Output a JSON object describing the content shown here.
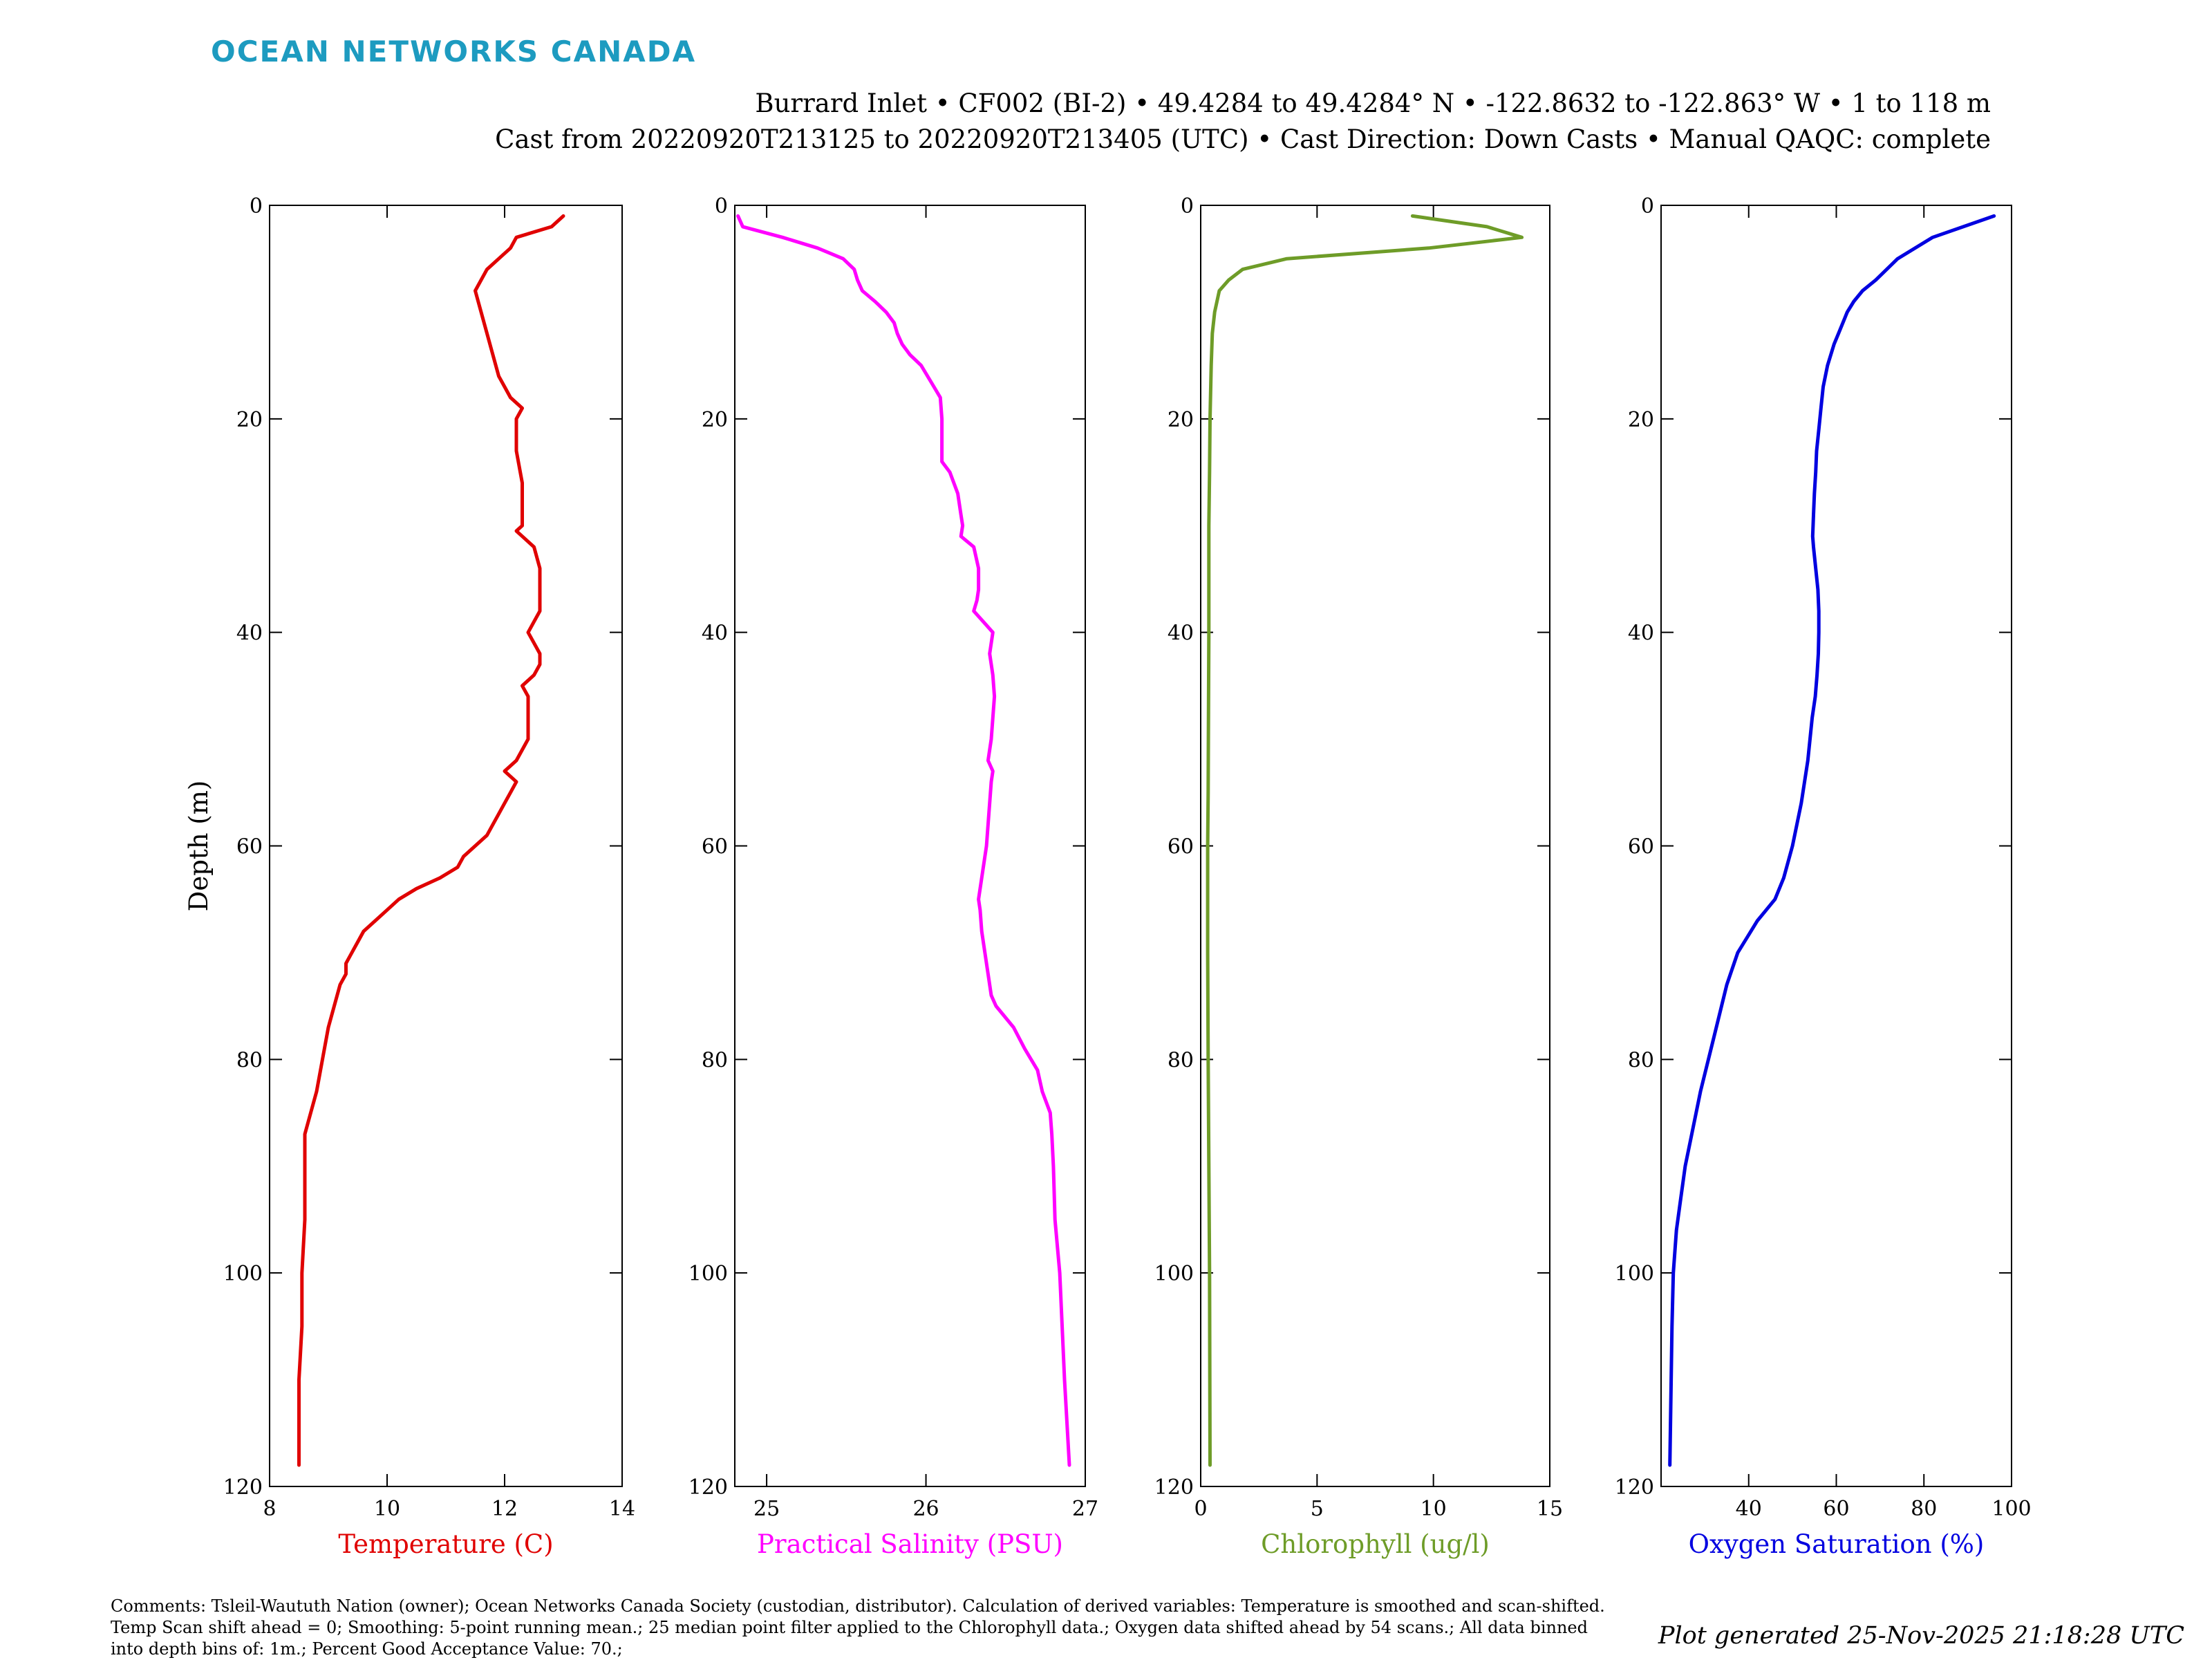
{
  "header": {
    "logo_text": "OCEAN NETWORKS CANADA",
    "line1": "Burrard Inlet • CF002 (BI-2) • 49.4284 to 49.4284° N • -122.8632 to -122.863° W • 1 to 118 m",
    "line2": "Cast from 20220920T213125 to 20220920T213405 (UTC) • Cast Direction: Down Casts • Manual QAQC: complete"
  },
  "footer": {
    "comments": "Comments: Tsleil-Waututh Nation (owner); Ocean Networks Canada Society (custodian, distributor). Calculation of derived variables: Temperature is smoothed and scan-shifted. Temp Scan shift ahead = 0; Smoothing: 5-point running mean.; 25 median point filter applied to the Chlorophyll data.; Oxygen data shifted ahead by 54 scans.; All data binned into depth bins of: 1m.; Percent Good Acceptance Value: 70.;",
    "generated": "Plot generated 25-Nov-2025 21:18:28 UTC"
  },
  "chart_data": [
    {
      "type": "line",
      "title": "",
      "xlabel": "Temperature (C)",
      "ylabel": "Depth (m)",
      "color": "#e00000",
      "xlim": [
        8,
        14
      ],
      "ylim": [
        0,
        120
      ],
      "y_reversed": true,
      "xticks": [
        "8",
        "10",
        "12",
        "14"
      ],
      "yticks": [
        "0",
        "20",
        "40",
        "60",
        "80",
        "100",
        "120"
      ],
      "series": [
        {
          "x": [
            13.0,
            12.8,
            12.2,
            12.1,
            11.9,
            11.7,
            11.5,
            11.6,
            11.7,
            11.8,
            11.9,
            12.0,
            12.1,
            12.3,
            12.2,
            12.2,
            12.3,
            12.3,
            12.3,
            12.3,
            12.2,
            12.3,
            12.5,
            12.6,
            12.6,
            12.6,
            12.6,
            12.5,
            12.4,
            12.5,
            12.6,
            12.6,
            12.5,
            12.3,
            12.4,
            12.4,
            12.4,
            12.3,
            12.2,
            12.0,
            12.2,
            12.1,
            12.0,
            11.9,
            11.8,
            11.7,
            11.5,
            11.3,
            11.2,
            10.9,
            10.5,
            10.2,
            10.0,
            9.8,
            9.6,
            9.5,
            9.4,
            9.3,
            9.3,
            9.2,
            9.1,
            9.0,
            8.9,
            8.8,
            8.7,
            8.6,
            8.6,
            8.6,
            8.55,
            8.55,
            8.5,
            8.5
          ],
          "y": [
            1,
            2,
            3,
            4,
            5,
            6,
            8,
            10,
            12,
            14,
            16,
            17,
            18,
            19,
            20,
            23,
            26,
            28,
            29,
            30,
            30.5,
            31,
            32,
            34,
            36,
            37,
            38,
            39,
            40,
            41,
            42,
            43,
            44,
            45,
            46,
            48,
            50,
            51,
            52,
            53,
            54,
            55,
            56,
            57,
            58,
            59,
            60,
            61,
            62,
            63,
            64,
            65,
            66,
            67,
            68,
            69,
            70,
            71,
            72,
            73,
            75,
            77,
            80,
            83,
            85,
            87,
            90,
            95,
            100,
            105,
            110,
            118
          ]
        }
      ]
    },
    {
      "type": "line",
      "title": "",
      "xlabel": "Practical Salinity (PSU)",
      "ylabel": "",
      "color": "#ff00ff",
      "xlim": [
        24.8,
        27
      ],
      "ylim": [
        0,
        120
      ],
      "y_reversed": true,
      "xticks": [
        "25",
        "26",
        "27"
      ],
      "yticks": [
        "0",
        "20",
        "40",
        "60",
        "80",
        "100",
        "120"
      ],
      "series": [
        {
          "x": [
            24.82,
            24.85,
            25.1,
            25.32,
            25.48,
            25.55,
            25.57,
            25.6,
            25.68,
            25.75,
            25.8,
            25.82,
            25.85,
            25.9,
            25.97,
            26.05,
            26.09,
            26.1,
            26.1,
            26.15,
            26.2,
            26.22,
            26.23,
            26.22,
            26.3,
            26.33,
            26.33,
            26.32,
            26.3,
            26.36,
            26.42,
            26.41,
            26.4,
            26.42,
            26.43,
            26.42,
            26.41,
            26.39,
            26.42,
            26.41,
            26.39,
            26.38,
            26.36,
            26.34,
            26.33,
            26.34,
            26.35,
            26.37,
            26.39,
            26.41,
            26.44,
            26.55,
            26.62,
            26.7,
            26.73,
            26.78,
            26.79,
            26.8,
            26.81,
            26.84,
            26.87,
            26.9
          ],
          "y": [
            1,
            2,
            3,
            4,
            5,
            6,
            7,
            8,
            9,
            10,
            11,
            12,
            13,
            14,
            15,
            17,
            18,
            20,
            24,
            25,
            27,
            29,
            30,
            31,
            32,
            34,
            36,
            37,
            38,
            39,
            40,
            41,
            42,
            44,
            46,
            48,
            50,
            52,
            53,
            54,
            58,
            60,
            62,
            64,
            65,
            66,
            68,
            70,
            72,
            74,
            75,
            77,
            79,
            81,
            83,
            85,
            87,
            90,
            95,
            100,
            110,
            118
          ]
        }
      ]
    },
    {
      "type": "line",
      "title": "",
      "xlabel": "Chlorophyll (ug/l)",
      "ylabel": "",
      "color": "#6e9c28",
      "xlim": [
        0,
        15
      ],
      "ylim": [
        0,
        120
      ],
      "y_reversed": true,
      "xticks": [
        "0",
        "5",
        "10",
        "15"
      ],
      "yticks": [
        "0",
        "20",
        "40",
        "60",
        "80",
        "100",
        "120"
      ],
      "series": [
        {
          "x": [
            9.1,
            12.3,
            13.8,
            9.8,
            3.7,
            1.8,
            1.2,
            0.8,
            0.6,
            0.5,
            0.45,
            0.4,
            0.38,
            0.35,
            0.35,
            0.33,
            0.32,
            0.3,
            0.3,
            0.32,
            0.35,
            0.38,
            0.4
          ],
          "y": [
            1,
            2,
            3,
            4,
            5,
            6,
            7,
            8,
            10,
            12,
            15,
            20,
            25,
            30,
            40,
            50,
            55,
            60,
            70,
            80,
            90,
            100,
            118
          ]
        }
      ]
    },
    {
      "type": "line",
      "title": "",
      "xlabel": "Oxygen Saturation (%)",
      "ylabel": "",
      "color": "#0000e0",
      "xlim": [
        20,
        100
      ],
      "ylim": [
        0,
        120
      ],
      "y_reversed": true,
      "xticks": [
        "40",
        "60",
        "80",
        "100"
      ],
      "yticks": [
        "0",
        "20",
        "40",
        "60",
        "80",
        "100",
        "120"
      ],
      "series": [
        {
          "x": [
            96,
            82,
            74,
            69,
            66,
            64,
            62.5,
            61.5,
            60.5,
            59.5,
            58,
            57,
            56.5,
            56,
            55.5,
            55.3,
            55,
            54.8,
            54.7,
            54.6,
            54.8,
            55.3,
            55.8,
            56,
            56,
            55.9,
            55.6,
            55.2,
            54.5,
            53.5,
            52,
            50,
            48,
            46,
            44,
            42,
            40.5,
            39,
            37.5,
            35,
            32,
            29,
            27,
            25.5,
            24.5,
            23.5,
            22.8,
            22.5,
            22.3,
            22
          ],
          "y": [
            1,
            3,
            5,
            7,
            8,
            9,
            10,
            11,
            12,
            13,
            15,
            17,
            19,
            21,
            23,
            25,
            27,
            29,
            30,
            31,
            32,
            34,
            36,
            38,
            40,
            42,
            44,
            46,
            48,
            52,
            56,
            60,
            63,
            65,
            66,
            67,
            68,
            69,
            70,
            73,
            78,
            83,
            87,
            90,
            93,
            96,
            100,
            105,
            110,
            118
          ]
        }
      ]
    }
  ]
}
